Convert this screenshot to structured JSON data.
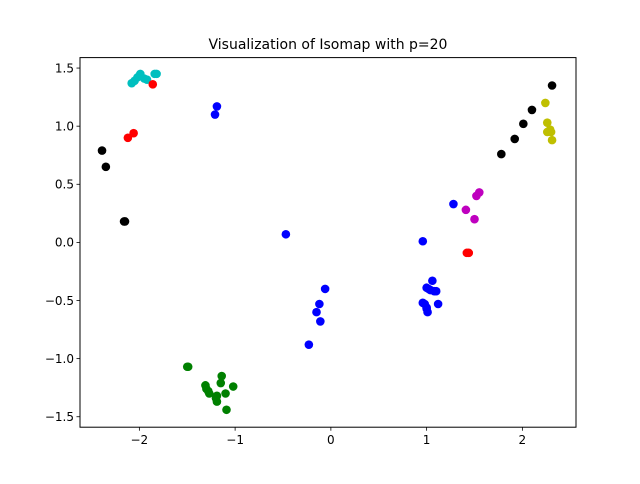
{
  "chart_data": {
    "type": "scatter",
    "title": "Visualization of Isomap with p=20",
    "xlabel": "",
    "ylabel": "",
    "xlim": [
      -2.62,
      2.56
    ],
    "ylim": [
      -1.59,
      1.59
    ],
    "grid": false,
    "x_ticks": [
      {
        "value": -2,
        "label": "−2"
      },
      {
        "value": -1,
        "label": "−1"
      },
      {
        "value": 0,
        "label": "0"
      },
      {
        "value": 1,
        "label": "1"
      },
      {
        "value": 2,
        "label": "2"
      }
    ],
    "y_ticks": [
      {
        "value": -1.5,
        "label": "−1.5"
      },
      {
        "value": -1.0,
        "label": "−1.0"
      },
      {
        "value": -0.5,
        "label": "−0.5"
      },
      {
        "value": 0.0,
        "label": "0.0"
      },
      {
        "value": 0.5,
        "label": "0.5"
      },
      {
        "value": 1.0,
        "label": "1.0"
      },
      {
        "value": 1.5,
        "label": "1.5"
      }
    ],
    "series": [
      {
        "color": "#00bfbf",
        "points": [
          [
            -2.08,
            1.37
          ],
          [
            -2.05,
            1.39
          ],
          [
            -2.02,
            1.42
          ],
          [
            -1.99,
            1.45
          ],
          [
            -1.95,
            1.41
          ],
          [
            -1.92,
            1.4
          ],
          [
            -1.84,
            1.45
          ],
          [
            -1.82,
            1.45
          ]
        ]
      },
      {
        "color": "#ff0000",
        "points": [
          [
            -1.86,
            1.36
          ],
          [
            -2.12,
            0.9
          ],
          [
            -2.06,
            0.94
          ],
          [
            1.42,
            -0.09
          ],
          [
            1.44,
            -0.09
          ]
        ]
      },
      {
        "color": "#000000",
        "points": [
          [
            -2.39,
            0.79
          ],
          [
            -2.35,
            0.65
          ],
          [
            -2.16,
            0.18
          ],
          [
            -2.15,
            0.18
          ],
          [
            1.78,
            0.76
          ],
          [
            1.92,
            0.89
          ],
          [
            2.01,
            1.02
          ],
          [
            2.1,
            1.14
          ],
          [
            2.31,
            1.35
          ]
        ]
      },
      {
        "color": "#0000ff",
        "points": [
          [
            -1.19,
            1.17
          ],
          [
            -1.21,
            1.1
          ],
          [
            -0.47,
            0.07
          ],
          [
            -0.06,
            -0.4
          ],
          [
            -0.12,
            -0.53
          ],
          [
            -0.15,
            -0.6
          ],
          [
            -0.11,
            -0.68
          ],
          [
            -0.23,
            -0.88
          ],
          [
            0.96,
            0.01
          ],
          [
            0.96,
            -0.52
          ],
          [
            0.98,
            -0.53
          ],
          [
            1.0,
            -0.39
          ],
          [
            1.02,
            -0.4
          ],
          [
            1.04,
            -0.41
          ],
          [
            1.06,
            -0.33
          ],
          [
            1.08,
            -0.42
          ],
          [
            1.1,
            -0.42
          ],
          [
            1.12,
            -0.53
          ],
          [
            1.0,
            -0.56
          ],
          [
            1.01,
            -0.6
          ],
          [
            1.0,
            -0.57
          ],
          [
            1.28,
            0.33
          ]
        ]
      },
      {
        "color": "#bf00bf",
        "points": [
          [
            1.41,
            0.28
          ],
          [
            1.5,
            0.2
          ],
          [
            1.52,
            0.4
          ],
          [
            1.55,
            0.43
          ]
        ]
      },
      {
        "color": "#bfbf00",
        "points": [
          [
            2.24,
            1.2
          ],
          [
            2.26,
            1.03
          ],
          [
            2.26,
            0.95
          ],
          [
            2.29,
            0.97
          ],
          [
            2.3,
            0.95
          ],
          [
            2.31,
            0.88
          ]
        ]
      },
      {
        "color": "#008000",
        "points": [
          [
            -1.5,
            -1.07
          ],
          [
            -1.49,
            -1.07
          ],
          [
            -1.31,
            -1.23
          ],
          [
            -1.3,
            -1.26
          ],
          [
            -1.28,
            -1.28
          ],
          [
            -1.27,
            -1.3
          ],
          [
            -1.2,
            -1.34
          ],
          [
            -1.19,
            -1.32
          ],
          [
            -1.19,
            -1.37
          ],
          [
            -1.15,
            -1.21
          ],
          [
            -1.14,
            -1.15
          ],
          [
            -1.1,
            -1.3
          ],
          [
            -1.09,
            -1.44
          ],
          [
            -1.02,
            -1.24
          ]
        ]
      }
    ]
  }
}
